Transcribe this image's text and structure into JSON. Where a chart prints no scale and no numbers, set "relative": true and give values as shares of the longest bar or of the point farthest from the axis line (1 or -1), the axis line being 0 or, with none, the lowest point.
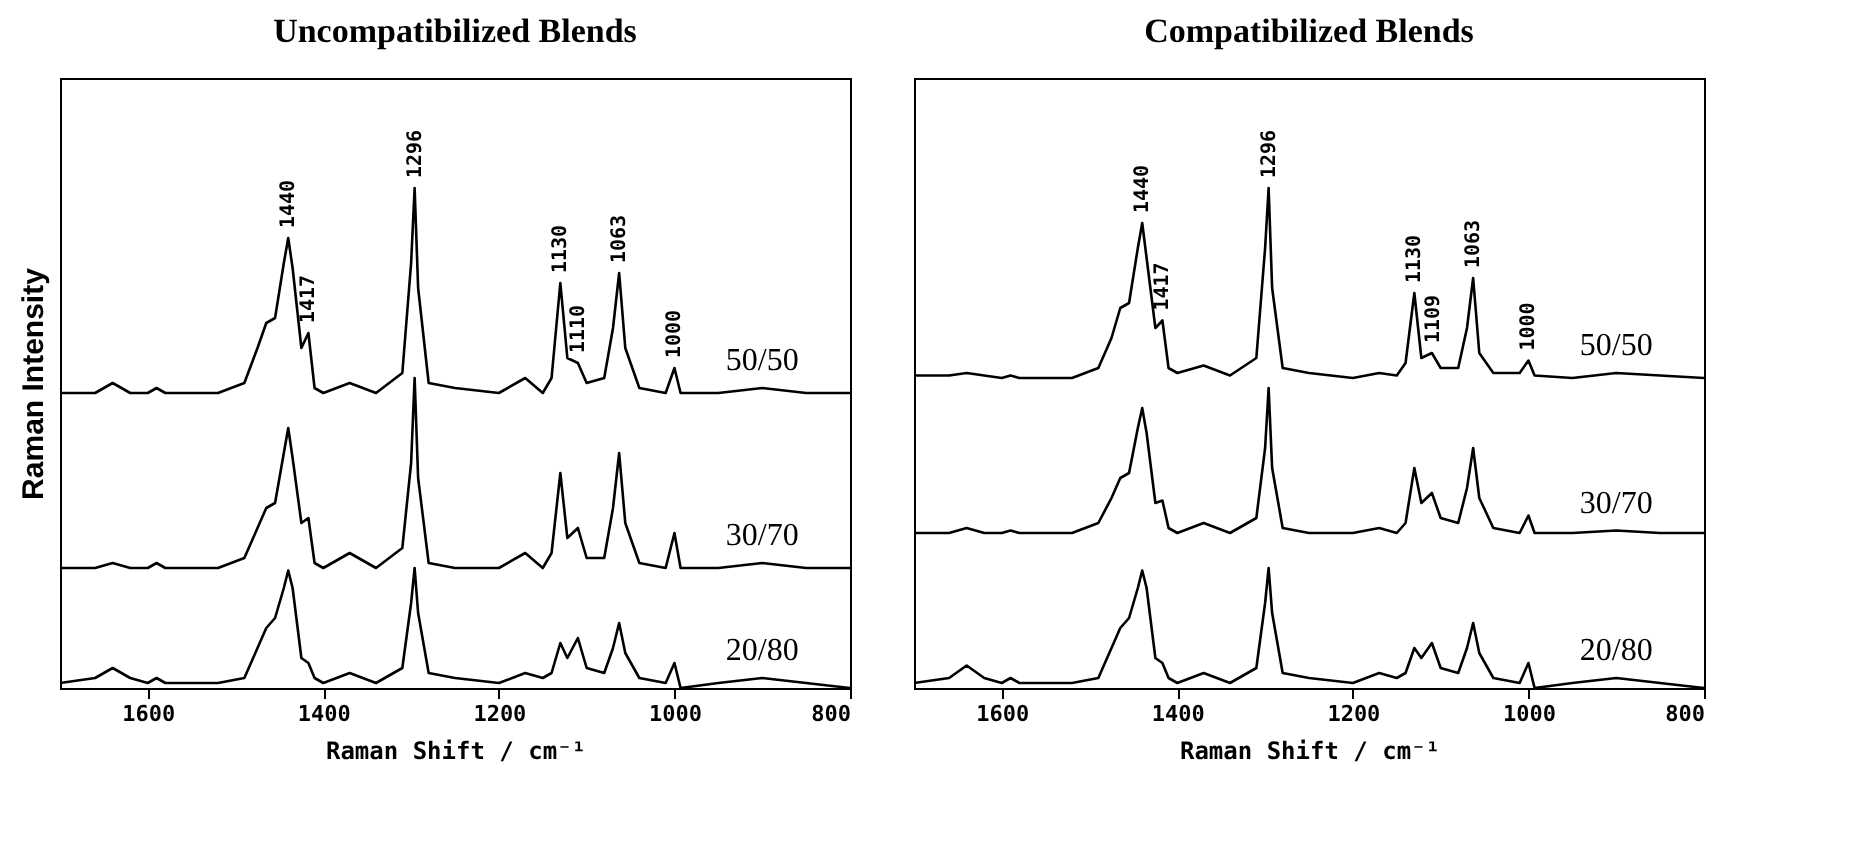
{
  "chart_data": [
    {
      "type": "line",
      "title": "Uncompatibilized Blends",
      "xlabel": "Raman Shift / cm⁻¹",
      "ylabel": "Raman Intensity",
      "relative": true,
      "xlim": [
        1700,
        800
      ],
      "xticks": [
        1600,
        1400,
        1200,
        1000,
        800
      ],
      "x": [
        1700,
        1660,
        1640,
        1620,
        1600,
        1590,
        1580,
        1520,
        1490,
        1475,
        1465,
        1455,
        1445,
        1440,
        1435,
        1425,
        1417,
        1410,
        1400,
        1370,
        1340,
        1310,
        1300,
        1296,
        1292,
        1280,
        1250,
        1200,
        1170,
        1150,
        1140,
        1130,
        1122,
        1110,
        1100,
        1080,
        1070,
        1063,
        1056,
        1040,
        1010,
        1000,
        993,
        950,
        900,
        850,
        800
      ],
      "series": [
        {
          "name": "50/50",
          "color": "#000000",
          "values": [
            0.59,
            0.59,
            0.61,
            0.59,
            0.59,
            0.6,
            0.59,
            0.59,
            0.61,
            0.68,
            0.73,
            0.74,
            0.85,
            0.9,
            0.84,
            0.68,
            0.71,
            0.6,
            0.59,
            0.61,
            0.59,
            0.63,
            0.85,
            1.0,
            0.8,
            0.61,
            0.6,
            0.59,
            0.62,
            0.59,
            0.62,
            0.81,
            0.66,
            0.65,
            0.61,
            0.62,
            0.72,
            0.83,
            0.68,
            0.6,
            0.59,
            0.64,
            0.59,
            0.59,
            0.6,
            0.59,
            0.59
          ]
        },
        {
          "name": "30/70",
          "color": "#000000",
          "values": [
            0.24,
            0.24,
            0.25,
            0.24,
            0.24,
            0.25,
            0.24,
            0.24,
            0.26,
            0.32,
            0.36,
            0.37,
            0.47,
            0.52,
            0.46,
            0.33,
            0.34,
            0.25,
            0.24,
            0.27,
            0.24,
            0.28,
            0.45,
            0.62,
            0.42,
            0.25,
            0.24,
            0.24,
            0.27,
            0.24,
            0.27,
            0.43,
            0.3,
            0.32,
            0.26,
            0.26,
            0.36,
            0.47,
            0.33,
            0.25,
            0.24,
            0.31,
            0.24,
            0.24,
            0.25,
            0.24,
            0.24
          ]
        },
        {
          "name": "20/80",
          "color": "#000000",
          "values": [
            0.01,
            0.02,
            0.04,
            0.02,
            0.01,
            0.02,
            0.01,
            0.01,
            0.02,
            0.08,
            0.12,
            0.14,
            0.2,
            0.235,
            0.2,
            0.06,
            0.05,
            0.02,
            0.01,
            0.03,
            0.01,
            0.04,
            0.17,
            0.24,
            0.15,
            0.03,
            0.02,
            0.01,
            0.03,
            0.02,
            0.03,
            0.09,
            0.06,
            0.1,
            0.04,
            0.03,
            0.08,
            0.13,
            0.07,
            0.02,
            0.01,
            0.05,
            0,
            0.01,
            0.02,
            0.01,
            0
          ]
        }
      ],
      "annotations": [
        {
          "text": "1440",
          "x": 1440,
          "y": 0.9
        },
        {
          "text": "1417",
          "x": 1417,
          "y": 0.71
        },
        {
          "text": "1296",
          "x": 1296,
          "y": 1.0
        },
        {
          "text": "1130",
          "x": 1130,
          "y": 0.81
        },
        {
          "text": "1110",
          "x": 1110,
          "y": 0.65
        },
        {
          "text": "1063",
          "x": 1063,
          "y": 0.83
        },
        {
          "text": "1000",
          "x": 1000,
          "y": 0.64
        }
      ]
    },
    {
      "type": "line",
      "title": "Compatibilized Blends",
      "xlabel": "Raman Shift / cm⁻¹",
      "relative": true,
      "xlim": [
        1700,
        800
      ],
      "xticks": [
        1600,
        1400,
        1200,
        1000,
        800
      ],
      "x": [
        1700,
        1660,
        1640,
        1620,
        1600,
        1590,
        1580,
        1520,
        1490,
        1475,
        1465,
        1455,
        1445,
        1440,
        1435,
        1425,
        1417,
        1410,
        1400,
        1370,
        1340,
        1310,
        1300,
        1296,
        1292,
        1280,
        1250,
        1200,
        1170,
        1150,
        1140,
        1130,
        1122,
        1110,
        1100,
        1080,
        1070,
        1063,
        1056,
        1040,
        1010,
        1000,
        993,
        950,
        900,
        850,
        800
      ],
      "series": [
        {
          "name": "50/50",
          "color": "#000000",
          "values": [
            0.625,
            0.625,
            0.63,
            0.625,
            0.62,
            0.625,
            0.62,
            0.62,
            0.64,
            0.7,
            0.76,
            0.77,
            0.88,
            0.93,
            0.86,
            0.72,
            0.735,
            0.64,
            0.63,
            0.645,
            0.625,
            0.66,
            0.88,
            1.0,
            0.8,
            0.64,
            0.63,
            0.62,
            0.63,
            0.625,
            0.65,
            0.79,
            0.66,
            0.67,
            0.64,
            0.64,
            0.72,
            0.82,
            0.67,
            0.63,
            0.63,
            0.655,
            0.625,
            0.62,
            0.63,
            0.625,
            0.62
          ]
        },
        {
          "name": "30/70",
          "color": "#000000",
          "values": [
            0.31,
            0.31,
            0.32,
            0.31,
            0.31,
            0.315,
            0.31,
            0.31,
            0.33,
            0.38,
            0.42,
            0.43,
            0.52,
            0.56,
            0.51,
            0.37,
            0.375,
            0.32,
            0.31,
            0.33,
            0.31,
            0.34,
            0.48,
            0.6,
            0.44,
            0.32,
            0.31,
            0.31,
            0.32,
            0.31,
            0.33,
            0.44,
            0.37,
            0.39,
            0.34,
            0.33,
            0.4,
            0.48,
            0.38,
            0.32,
            0.31,
            0.345,
            0.31,
            0.31,
            0.315,
            0.31,
            0.31
          ]
        },
        {
          "name": "20/80",
          "color": "#000000",
          "values": [
            0.01,
            0.02,
            0.045,
            0.02,
            0.01,
            0.02,
            0.01,
            0.01,
            0.02,
            0.08,
            0.12,
            0.14,
            0.2,
            0.235,
            0.2,
            0.06,
            0.05,
            0.02,
            0.01,
            0.03,
            0.01,
            0.04,
            0.17,
            0.24,
            0.15,
            0.03,
            0.02,
            0.01,
            0.03,
            0.02,
            0.03,
            0.08,
            0.06,
            0.09,
            0.04,
            0.03,
            0.08,
            0.13,
            0.07,
            0.02,
            0.01,
            0.05,
            0,
            0.01,
            0.02,
            0.01,
            0
          ]
        }
      ],
      "annotations": [
        {
          "text": "1440",
          "x": 1440,
          "y": 0.93
        },
        {
          "text": "1417",
          "x": 1417,
          "y": 0.735
        },
        {
          "text": "1296",
          "x": 1296,
          "y": 1.0
        },
        {
          "text": "1130",
          "x": 1130,
          "y": 0.79
        },
        {
          "text": "1109",
          "x": 1109,
          "y": 0.67
        },
        {
          "text": "1063",
          "x": 1063,
          "y": 0.82
        },
        {
          "text": "1000",
          "x": 1000,
          "y": 0.655
        }
      ]
    }
  ]
}
